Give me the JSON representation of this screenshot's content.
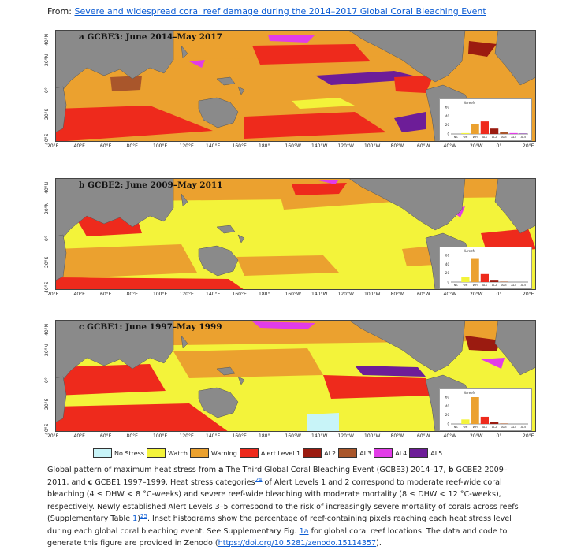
{
  "header": {
    "from_prefix": "From: ",
    "article_link": "Severe and widespread coral reef damage during the 2014–2017 Global Coral Bleaching Event"
  },
  "panels": [
    {
      "title": "a GCBE3: June 2014–May 2017",
      "inset_values": [
        0,
        2,
        22,
        28,
        12,
        4,
        2,
        1
      ]
    },
    {
      "title": "b GCBE2: June 2009–May 2011",
      "inset_values": [
        0,
        12,
        52,
        18,
        5,
        1,
        0,
        0
      ]
    },
    {
      "title": "c GCBE1: June 1997–May 1999",
      "inset_values": [
        0,
        10,
        60,
        16,
        4,
        1,
        0,
        0
      ]
    }
  ],
  "axes": {
    "lat_labels": [
      "40°N",
      "20°N",
      "0°",
      "20°S",
      "40°S"
    ],
    "lon_labels": [
      "20°E",
      "40°E",
      "60°E",
      "80°E",
      "100°E",
      "120°E",
      "140°E",
      "160°E",
      "180°",
      "160°W",
      "140°W",
      "120°W",
      "100°W",
      "80°W",
      "60°W",
      "40°W",
      "20°W",
      "0°",
      "20°E"
    ]
  },
  "inset": {
    "ylabel": "% reefs",
    "yticks": [
      "60",
      "40",
      "20",
      "0"
    ],
    "categories": [
      "NS",
      "WH",
      "WH",
      "AL1",
      "AL2",
      "AL3",
      "AL4",
      "AL5"
    ]
  },
  "legend": [
    {
      "label": "No Stress",
      "color": "#c8f4f8"
    },
    {
      "label": "Watch",
      "color": "#f3f33a"
    },
    {
      "label": "Warning",
      "color": "#eba12f"
    },
    {
      "label": "Alert Level 1",
      "color": "#ee2a1c"
    },
    {
      "label": "AL2",
      "color": "#9b1b10"
    },
    {
      "label": "AL3",
      "color": "#a9562b"
    },
    {
      "label": "AL4",
      "color": "#e23ce8"
    },
    {
      "label": "AL5",
      "color": "#6d1d98"
    }
  ],
  "caption": {
    "p1": "Global pattern of maximum heat stress from ",
    "b1": "a",
    "p2": " The Third Global Coral Bleaching Event (GCBE3) 2014–17, ",
    "b2": "b",
    "p3": " GCBE2 2009–2011, and ",
    "b3": "c",
    "p4": " GCBE1 1997–1999. Heat stress categories",
    "ref1": "24",
    "p5": " of Alert Levels 1 and 2 correspond to moderate reef-wide coral bleaching (4 ≤ DHW < 8 °C-weeks) and severe reef-wide bleaching with moderate mortality (8 ≤ DHW < 12 °C-weeks), respectively. Newly established Alert Levels 3–5 correspond to the risk of increasingly severe mortality of corals across reefs (Supplementary Table ",
    "ref2": "1",
    "ref3": "25",
    "p6": ". Inset histograms show the percentage of reef-containing pixels reaching each heat stress level during each global coral bleaching event. See Supplementary Fig. ",
    "ref4": "1a",
    "p7": " for global coral reef locations. The data and code to generate this figure are provided in Zenodo (",
    "ref5": "https://doi.org/10.5281/zenodo.15114357",
    "p8": ")."
  }
}
